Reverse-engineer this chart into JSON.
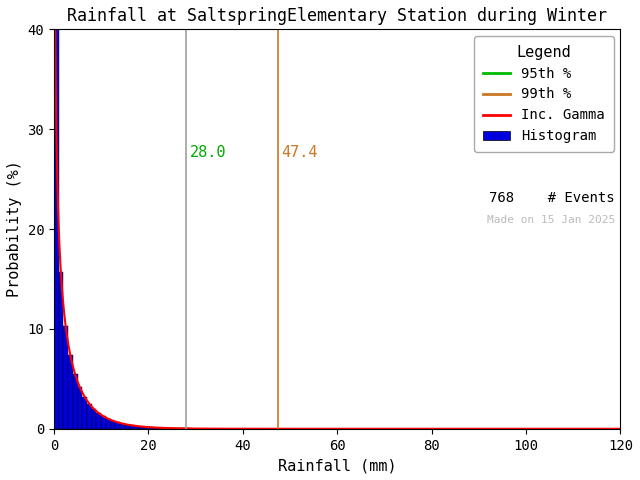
{
  "title": "Rainfall at SaltspringElementary Station during Winter",
  "xlabel": "Rainfall (mm)",
  "ylabel": "Probability (%)",
  "xlim": [
    0,
    120
  ],
  "ylim": [
    0,
    40
  ],
  "xticks": [
    0,
    20,
    40,
    60,
    80,
    100,
    120
  ],
  "yticks": [
    0,
    10,
    20,
    30,
    40
  ],
  "pct95": 28.0,
  "pct99": 47.4,
  "pct95_label": "28.0",
  "pct99_label": "47.4",
  "pct95_color": "#a0a0a0",
  "pct99_color": "#cc7722",
  "hist_color": "#0000dd",
  "hist_edgecolor": "#000000",
  "gamma_color": "#ff0000",
  "n_events": 768,
  "watermark": "Made on 15 Jan 2025",
  "watermark_color": "#bbbbbb",
  "legend_title": "Legend",
  "legend_95_color": "#00bb00",
  "legend_99_color": "#cc7722",
  "legend_95": "95th %",
  "legend_99": "99th %",
  "legend_gamma": "Inc. Gamma",
  "legend_hist": "Histogram",
  "gamma_shape": 0.55,
  "gamma_scale": 5.5,
  "bin_width": 1,
  "background_color": "#ffffff",
  "title_fontsize": 12,
  "axis_fontsize": 11,
  "tick_fontsize": 10,
  "legend_fontsize": 10
}
